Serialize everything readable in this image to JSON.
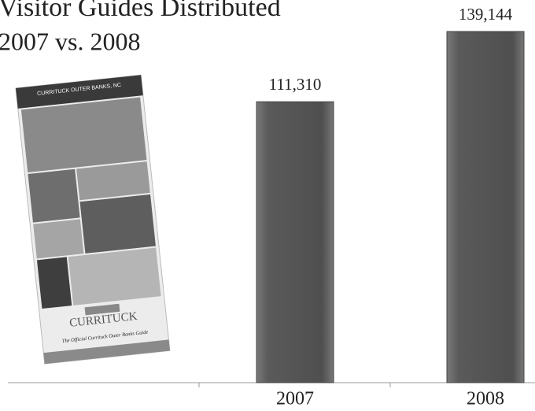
{
  "chart_data": {
    "type": "bar",
    "title": "Visitor Guides Distributed",
    "subtitle": "2007 vs. 2008",
    "categories": [
      "2007",
      "2008"
    ],
    "values": [
      111310,
      139144
    ],
    "value_labels": [
      "111,310",
      "139,144"
    ],
    "color": "#5a5a5a",
    "annotations": [
      "CURRITUCK OUTER BANKS, NC",
      "CURRITUCK",
      "The Official Currituck Outer Banks Guide"
    ]
  }
}
